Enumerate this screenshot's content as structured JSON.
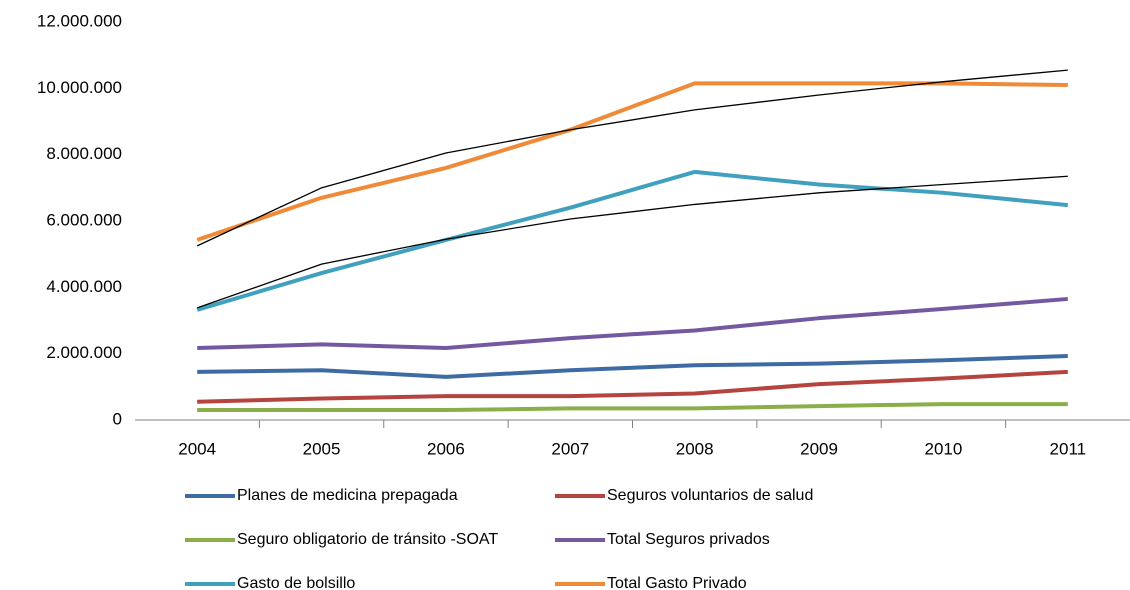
{
  "chart_data": {
    "type": "line",
    "categories": [
      "2004",
      "2005",
      "2006",
      "2007",
      "2008",
      "2009",
      "2010",
      "2011"
    ],
    "series": [
      {
        "name": "Planes de medicina prepagada",
        "color": "#3e6ba4",
        "values": [
          1450000,
          1500000,
          1300000,
          1500000,
          1650000,
          1700000,
          1800000,
          1930000
        ]
      },
      {
        "name": "Seguros voluntarios de salud",
        "color": "#b5443f",
        "values": [
          550000,
          650000,
          720000,
          720000,
          800000,
          1080000,
          1250000,
          1450000
        ]
      },
      {
        "name": "Seguro obligatorio de tránsito -SOAT",
        "color": "#8bae4a",
        "values": [
          300000,
          300000,
          300000,
          350000,
          350000,
          420000,
          480000,
          480000
        ]
      },
      {
        "name": "Total Seguros privados",
        "color": "#7459a0",
        "values": [
          2170000,
          2280000,
          2170000,
          2470000,
          2700000,
          3070000,
          3350000,
          3650000
        ]
      },
      {
        "name": "Gasto de bolsillo",
        "color": "#40a0bd",
        "values": [
          3320000,
          4430000,
          5430000,
          6400000,
          7480000,
          7100000,
          6850000,
          6480000
        ]
      },
      {
        "name": "Total Gasto  Privado",
        "color": "#ee8a38",
        "values": [
          5430000,
          6700000,
          7600000,
          8750000,
          10150000,
          10150000,
          10150000,
          10100000
        ]
      }
    ],
    "trendlines": [
      {
        "color": "#000000",
        "values": [
          5250000,
          7000000,
          8050000,
          8750000,
          9350000,
          9800000,
          10200000,
          10550000
        ]
      },
      {
        "color": "#000000",
        "values": [
          3380000,
          4700000,
          5450000,
          6060000,
          6500000,
          6850000,
          7100000,
          7350000
        ]
      }
    ],
    "ylim": [
      0,
      12000000
    ],
    "yticks": [
      {
        "value": 0,
        "label": "0"
      },
      {
        "value": 2000000,
        "label": "2.000.000"
      },
      {
        "value": 4000000,
        "label": "4.000.000"
      },
      {
        "value": 6000000,
        "label": "6.000.000"
      },
      {
        "value": 8000000,
        "label": "8.000.000"
      },
      {
        "value": 10000000,
        "label": "10.000.000"
      },
      {
        "value": 12000000,
        "label": "12.000.000"
      }
    ]
  }
}
